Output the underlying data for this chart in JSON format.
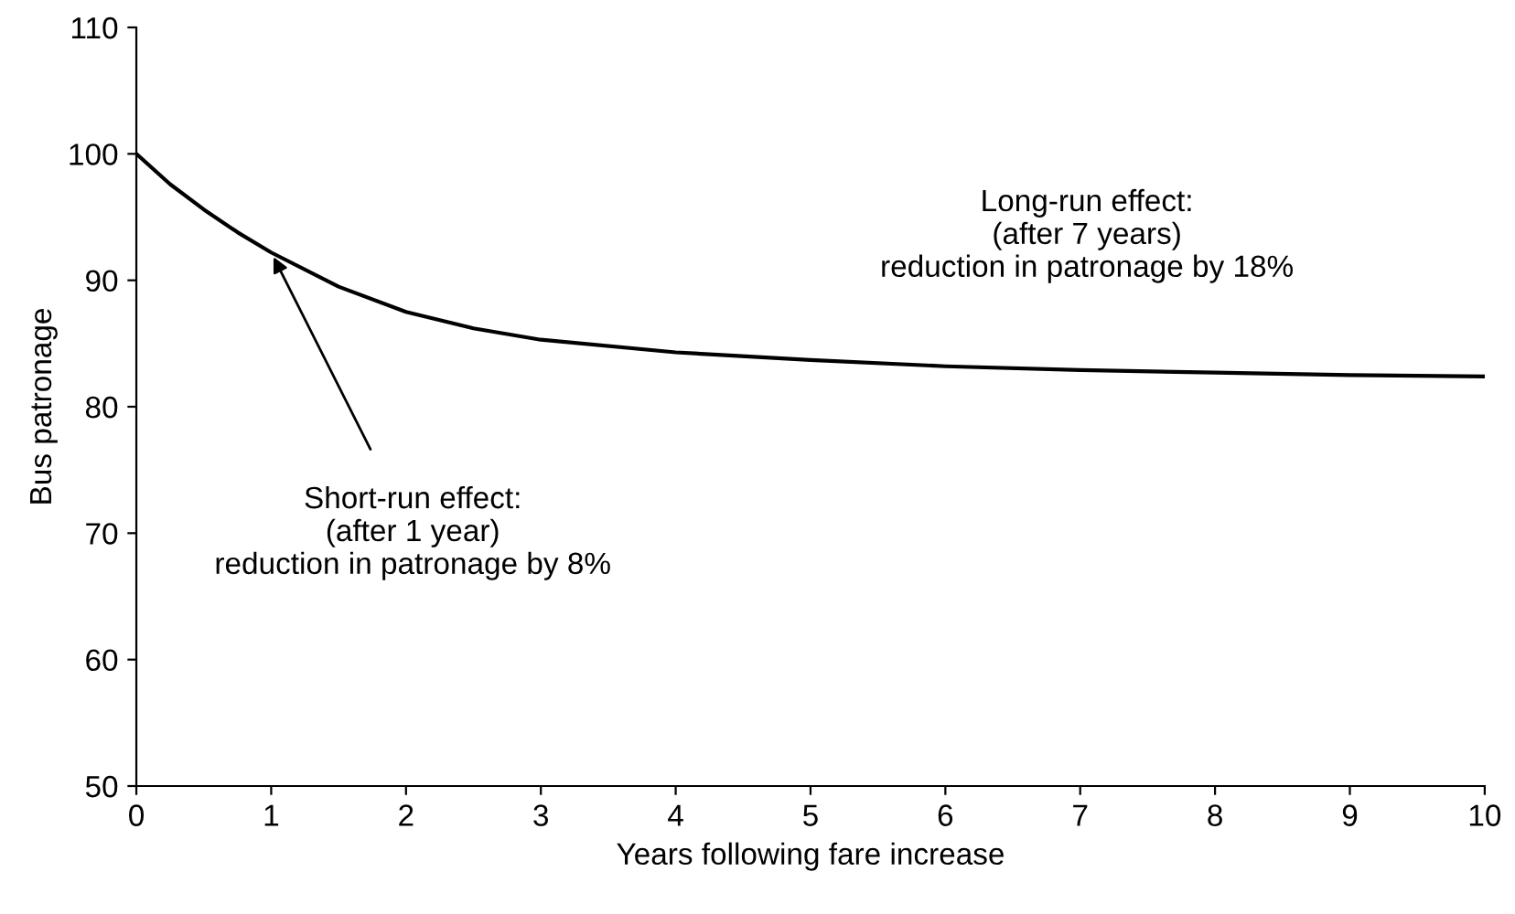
{
  "chart_data": {
    "type": "line",
    "xlabel": "Years following fare increase",
    "ylabel": "Bus patronage",
    "xlim": [
      0,
      10
    ],
    "ylim": [
      50,
      110
    ],
    "xticks": [
      0,
      1,
      2,
      3,
      4,
      5,
      6,
      7,
      8,
      9,
      10
    ],
    "yticks": [
      50,
      60,
      70,
      80,
      90,
      100,
      110
    ],
    "grid": false,
    "marker": "none",
    "line_style": "solid",
    "series": [
      {
        "color": "#000000",
        "x": [
          0,
          0.25,
          0.5,
          0.75,
          1,
          1.5,
          2,
          2.5,
          3,
          4,
          5,
          6,
          7,
          8,
          9,
          10
        ],
        "values": [
          100,
          97.6,
          95.6,
          93.8,
          92.2,
          89.5,
          87.5,
          86.2,
          85.3,
          84.3,
          83.7,
          83.2,
          82.9,
          82.7,
          82.5,
          82.4
        ]
      }
    ],
    "annotations": [
      {
        "text": "Short-run effect:\n(after 1 year)\nreduction in patronage by 8%",
        "x": 1,
        "y": 92.2
      },
      "Long-run effect:\n(after 7 years)\nreduction in patronage by 18%"
    ]
  }
}
